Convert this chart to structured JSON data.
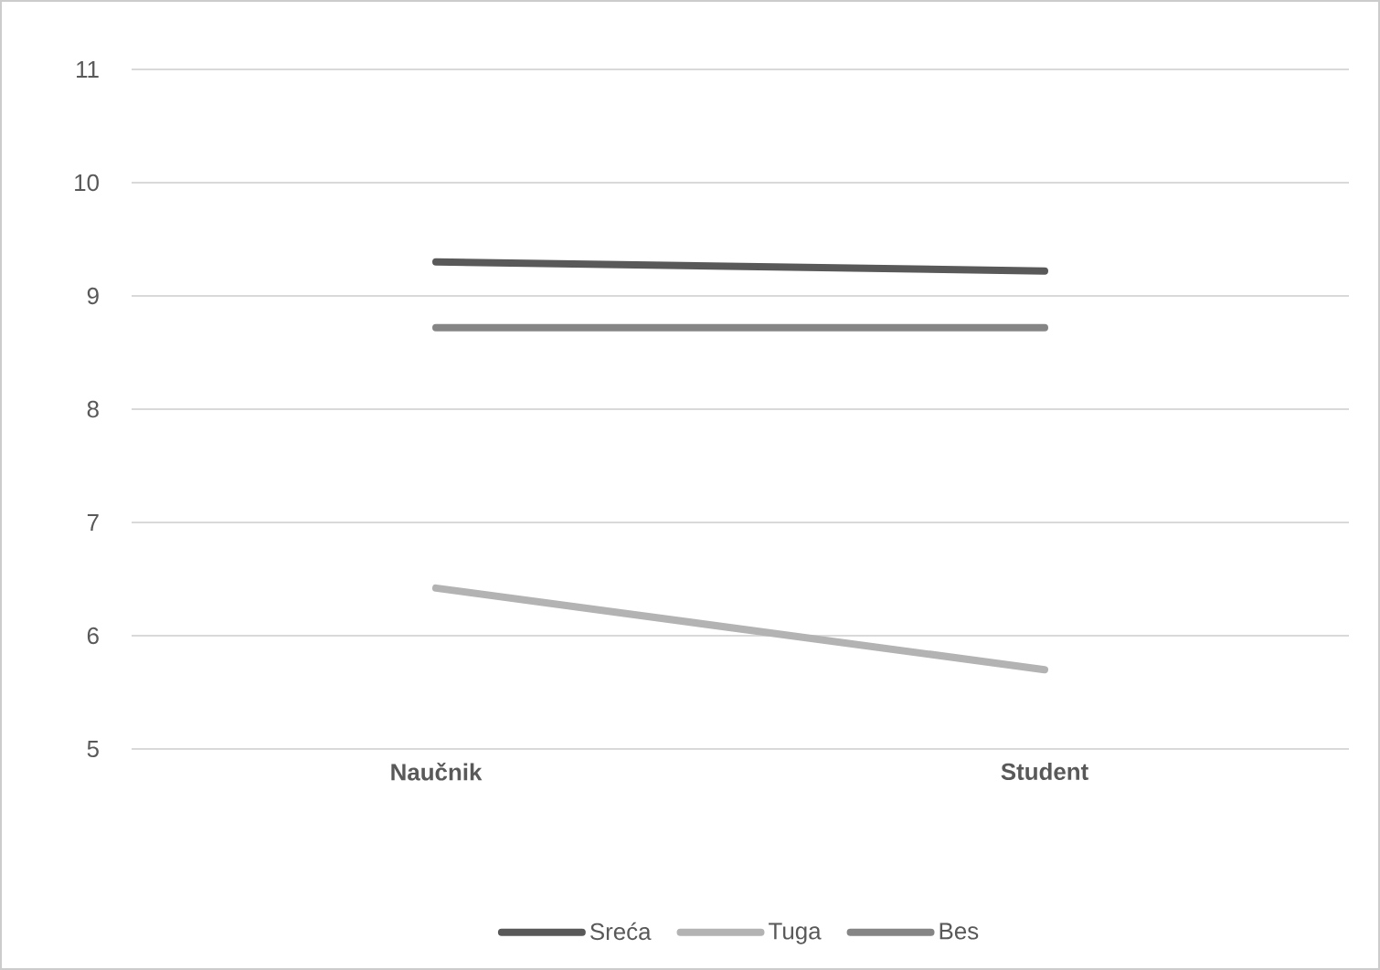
{
  "chart_data": {
    "type": "line",
    "categories": [
      "Naučnik",
      "Student"
    ],
    "series": [
      {
        "name": "Sreća",
        "color": "#595959",
        "values": [
          9.3,
          9.22
        ]
      },
      {
        "name": "Tuga",
        "color": "#b3b3b3",
        "values": [
          6.42,
          5.7
        ]
      },
      {
        "name": "Bes",
        "color": "#858585",
        "values": [
          8.72,
          8.72
        ]
      }
    ],
    "ylim": [
      5,
      11
    ],
    "yticks": [
      5,
      6,
      7,
      8,
      9,
      10,
      11
    ],
    "grid": "y",
    "legend": "bottom",
    "marker": "none",
    "line_style": "solid"
  }
}
